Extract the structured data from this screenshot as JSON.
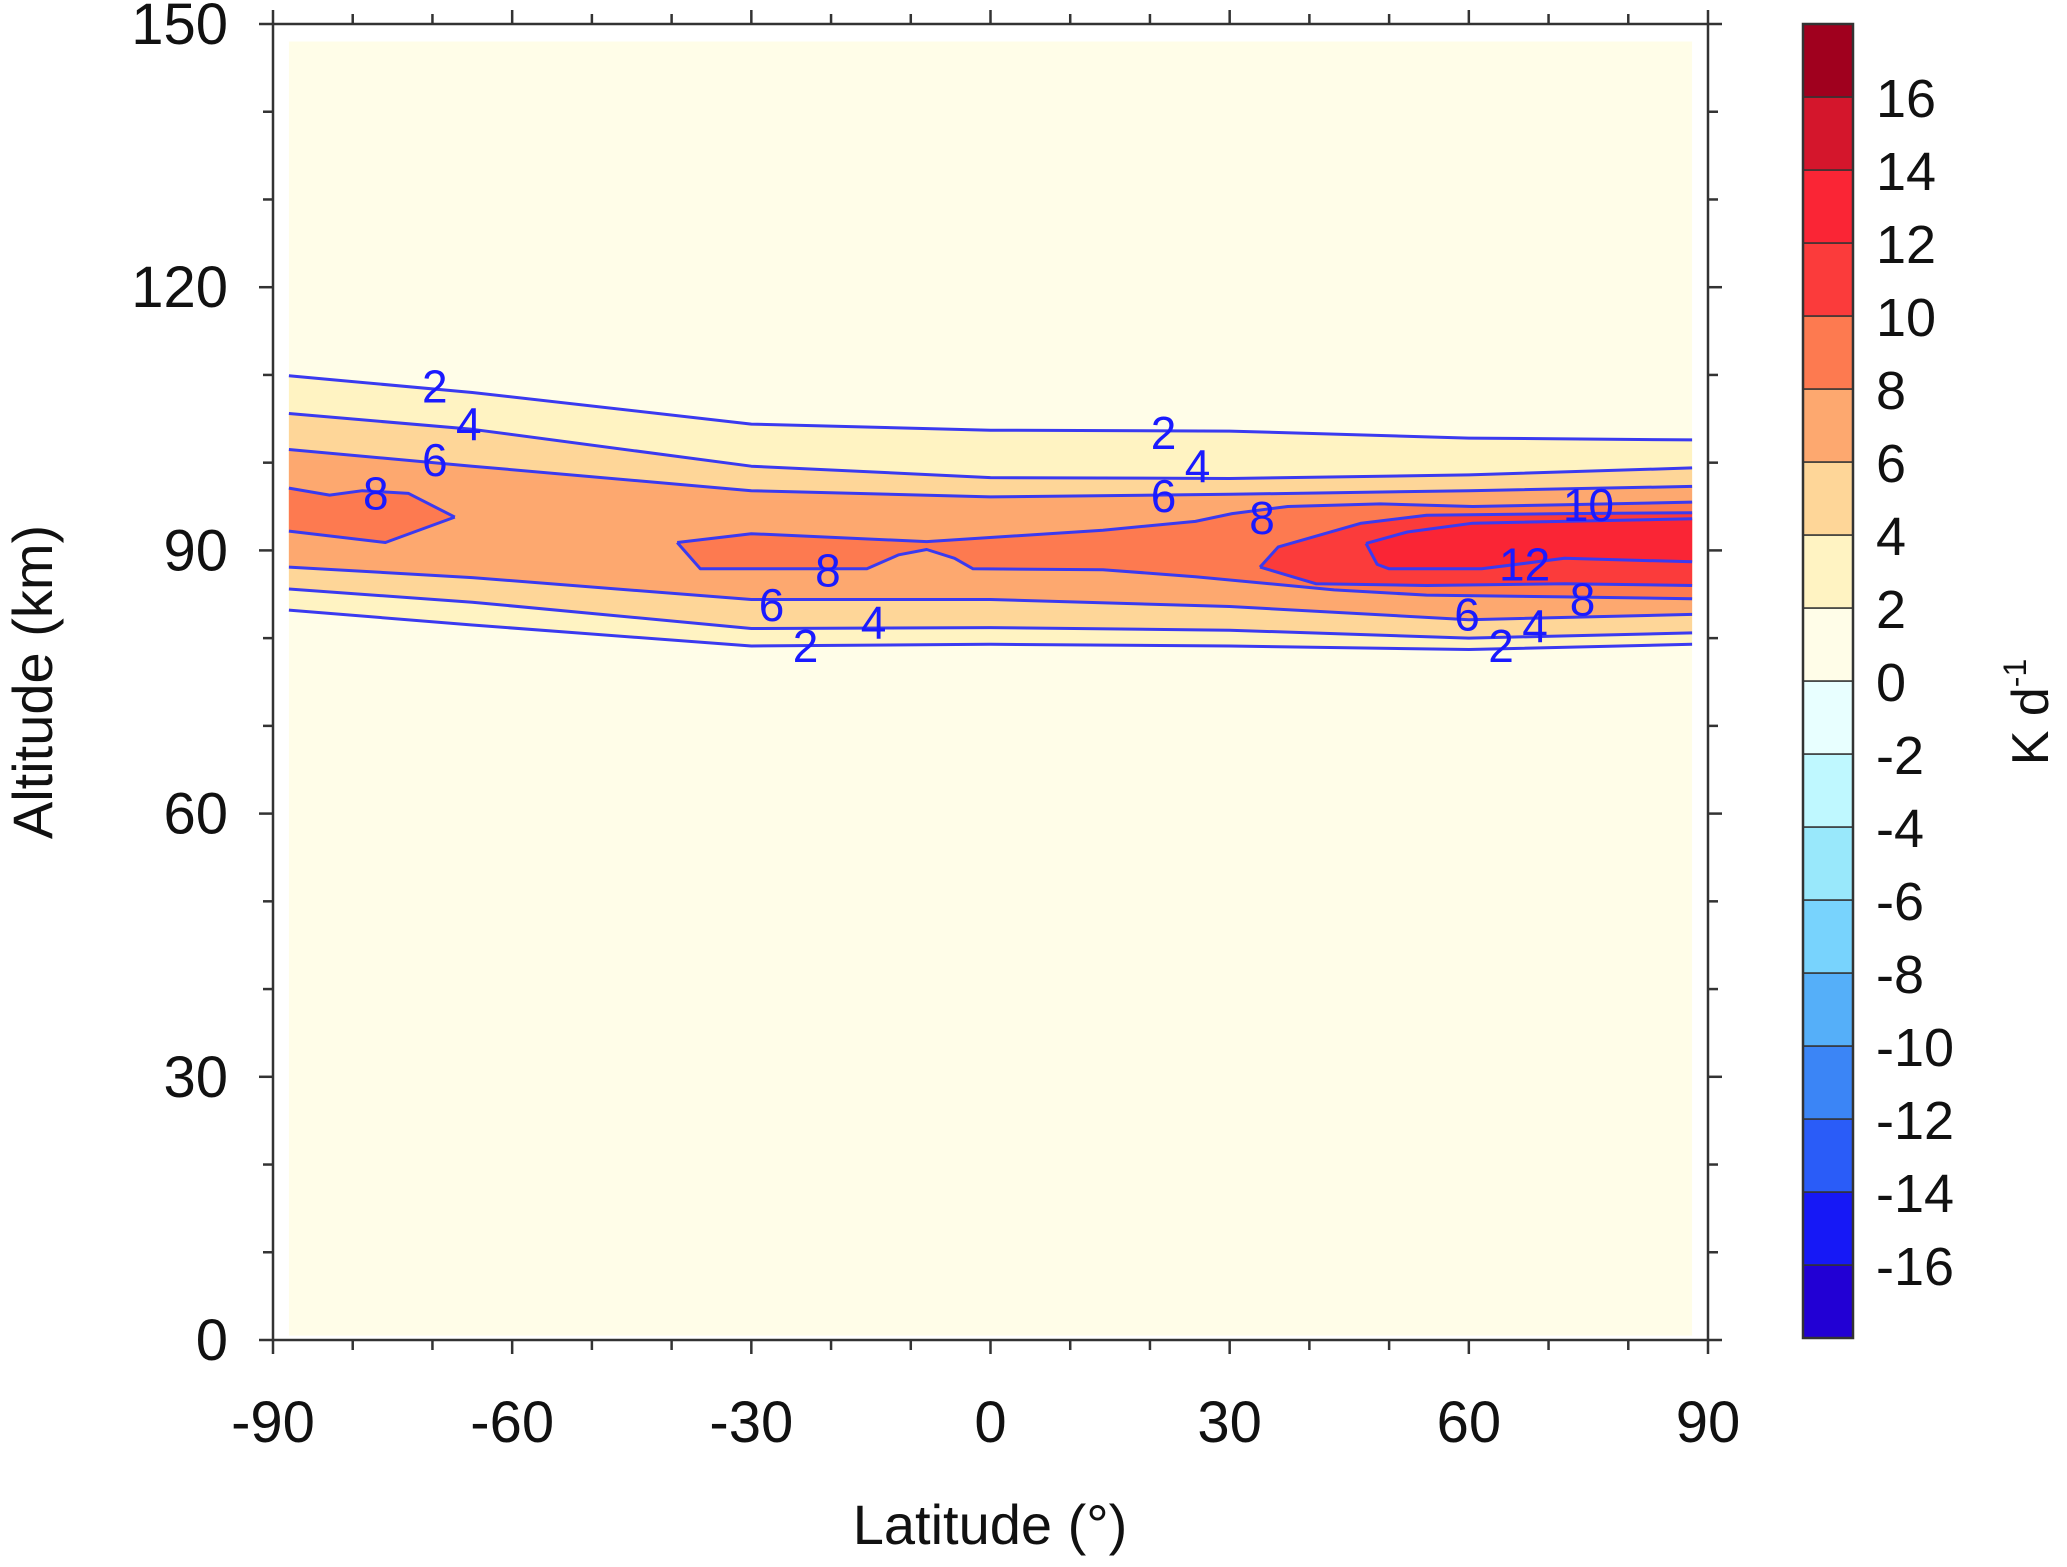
{
  "chart_data": {
    "type": "contour",
    "xlabel": "Latitude (°)",
    "ylabel": "Altitude (km)",
    "xlim": [
      -90,
      90
    ],
    "ylim": [
      0,
      150
    ],
    "xticks": [
      -90,
      -60,
      -30,
      0,
      30,
      60,
      90
    ],
    "yticks": [
      0,
      30,
      60,
      90,
      120,
      150
    ],
    "grid": false,
    "colorbar": {
      "label_main": "K d",
      "label_sup": "-1",
      "levels": [
        -18,
        -16,
        -14,
        -12,
        -10,
        -8,
        -6,
        -4,
        -2,
        0,
        2,
        4,
        6,
        8,
        10,
        12,
        14,
        16,
        18
      ],
      "tick_labels": [
        "16",
        "14",
        "12",
        "10",
        "8",
        "6",
        "4",
        "2",
        "0",
        "-2",
        "-4",
        "-6",
        "-8",
        "-10",
        "-12",
        "-14",
        "-16"
      ],
      "tick_values": [
        16,
        14,
        12,
        10,
        8,
        6,
        4,
        2,
        0,
        -2,
        -4,
        -6,
        -8,
        -10,
        -12,
        -14,
        -16
      ],
      "colors": [
        "#2200d4",
        "#1618f6",
        "#2a5cf8",
        "#3b85f6",
        "#55aff9",
        "#78d3fd",
        "#99e8fb",
        "#bff8ff",
        "#e8ffff",
        "#fffde8",
        "#fff3c2",
        "#fed698",
        "#fda86f",
        "#fd7a50",
        "#fb3b3b",
        "#fa2535",
        "#d4162c",
        "#a0001e"
      ]
    },
    "contour_color": "#3a3af0",
    "label_color": "#1a1aff",
    "regions": [
      {
        "level": 2,
        "upper": [
          [
            -88,
            109.9
          ],
          [
            -65,
            108
          ],
          [
            -30,
            104.4
          ],
          [
            0,
            103.7
          ],
          [
            30,
            103.6
          ],
          [
            60,
            102.8
          ],
          [
            88,
            102.6
          ]
        ],
        "lower": [
          [
            -88,
            83.2
          ],
          [
            -65,
            81.5
          ],
          [
            -30,
            79.1
          ],
          [
            0,
            79.3
          ],
          [
            30,
            79.1
          ],
          [
            60,
            78.7
          ],
          [
            88,
            79.3
          ]
        ]
      },
      {
        "level": 4,
        "upper": [
          [
            -88,
            105.6
          ],
          [
            -65,
            103.8
          ],
          [
            -30,
            99.6
          ],
          [
            0,
            98.3
          ],
          [
            30,
            98.2
          ],
          [
            60,
            98.6
          ],
          [
            88,
            99.4
          ]
        ],
        "lower": [
          [
            -88,
            85.6
          ],
          [
            -65,
            84.1
          ],
          [
            -30,
            81.1
          ],
          [
            0,
            81.2
          ],
          [
            30,
            80.9
          ],
          [
            60,
            80.0
          ],
          [
            88,
            80.6
          ]
        ]
      },
      {
        "level": 6,
        "upper": [
          [
            -88,
            101.5
          ],
          [
            -65,
            99.6
          ],
          [
            -30,
            96.8
          ],
          [
            0,
            96.1
          ],
          [
            30,
            96.4
          ],
          [
            60,
            96.8
          ],
          [
            88,
            97.3
          ]
        ],
        "lower": [
          [
            -88,
            88.1
          ],
          [
            -65,
            86.9
          ],
          [
            -30,
            84.4
          ],
          [
            0,
            84.4
          ],
          [
            30,
            83.6
          ],
          [
            60,
            82.1
          ],
          [
            88,
            82.7
          ]
        ]
      },
      {
        "level": 8,
        "upper": [
          [
            -88,
            97.1
          ],
          [
            -82.9,
            96.3
          ],
          [
            -78.8,
            96.8
          ],
          [
            -73.0,
            96.5
          ],
          [
            -67.2,
            93.8
          ]
        ],
        "lower": [
          [
            -88,
            92.2
          ],
          [
            -75.9,
            90.9
          ],
          [
            -67.2,
            93.8
          ]
        ]
      },
      {
        "level": 8,
        "upper": [
          [
            -39.3,
            90.9
          ],
          [
            -30,
            91.9
          ],
          [
            -8,
            91
          ],
          [
            14.1,
            92.3
          ],
          [
            25.7,
            93.3
          ],
          [
            30.3,
            94.2
          ],
          [
            37.3,
            95
          ],
          [
            48.9,
            95.3
          ],
          [
            60.5,
            95
          ],
          [
            72,
            95.2
          ],
          [
            88,
            95.5
          ]
        ],
        "lower": [
          [
            -39.3,
            90.9
          ],
          [
            -36.4,
            87.9
          ],
          [
            -21.9,
            87.9
          ],
          [
            -15.5,
            87.9
          ],
          [
            -11.5,
            89.5
          ],
          [
            -8.0,
            90.1
          ],
          [
            -4.5,
            89.1
          ],
          [
            -2.2,
            87.9
          ],
          [
            14.1,
            87.8
          ],
          [
            25.7,
            87.0
          ],
          [
            43.1,
            85.5
          ],
          [
            54.7,
            84.9
          ],
          [
            72.0,
            84.7
          ],
          [
            88,
            84.5
          ]
        ]
      },
      {
        "level": 10,
        "upper": [
          [
            33.8,
            88.1
          ],
          [
            36.1,
            90.4
          ],
          [
            46.5,
            93.1
          ],
          [
            54.7,
            94
          ],
          [
            72,
            94.2
          ],
          [
            88,
            94.3
          ]
        ],
        "lower": [
          [
            33.8,
            88.1
          ],
          [
            40.8,
            86.2
          ],
          [
            54.7,
            86
          ],
          [
            72,
            86.2
          ],
          [
            88,
            86
          ]
        ]
      },
      {
        "level": 12,
        "upper": [
          [
            47.1,
            90.8
          ],
          [
            52.3,
            92.1
          ],
          [
            60.5,
            93.1
          ],
          [
            88,
            93.6
          ]
        ],
        "lower": [
          [
            47.1,
            90.8
          ],
          [
            48.5,
            88.4
          ],
          [
            50,
            87.9
          ],
          [
            61.6,
            87.9
          ],
          [
            72,
            89.1
          ],
          [
            88,
            88.7
          ]
        ]
      }
    ],
    "contour_labels": [
      {
        "text": "2",
        "lat": -69.7,
        "alt": 108.7
      },
      {
        "text": "4",
        "lat": -69.7,
        "alt": 104.4
      },
      {
        "text": "6",
        "lat": -69.7,
        "alt": 100.3
      },
      {
        "text": "8",
        "lat": -77.1,
        "alt": 96.5
      },
      {
        "text": "2",
        "lat": 21.7,
        "alt": 103.4
      },
      {
        "text": "4",
        "lat": 21.7,
        "alt": 99.6
      },
      {
        "text": "6",
        "lat": 21.7,
        "alt": 96.2
      },
      {
        "text": "8",
        "lat": 29.8,
        "alt": 93.7
      },
      {
        "text": "10",
        "lat": 75,
        "alt": 95.2
      },
      {
        "text": "12",
        "lat": 67,
        "alt": 88.4
      },
      {
        "text": "8",
        "lat": 70,
        "alt": 84.4
      },
      {
        "text": "6",
        "lat": 68.3,
        "alt": 82.7
      },
      {
        "text": "4",
        "lat": 68.3,
        "alt": 81.4
      },
      {
        "text": "2",
        "lat": 68.3,
        "alt": 79.1
      },
      {
        "text": "8",
        "lat": -20.4,
        "alt": 87.7
      },
      {
        "text": "6",
        "lat": -23.2,
        "alt": 83.8
      },
      {
        "text": "4",
        "lat": -23.2,
        "alt": 81.8
      },
      {
        "text": "2",
        "lat": -23.2,
        "alt": 79.1
      }
    ]
  }
}
